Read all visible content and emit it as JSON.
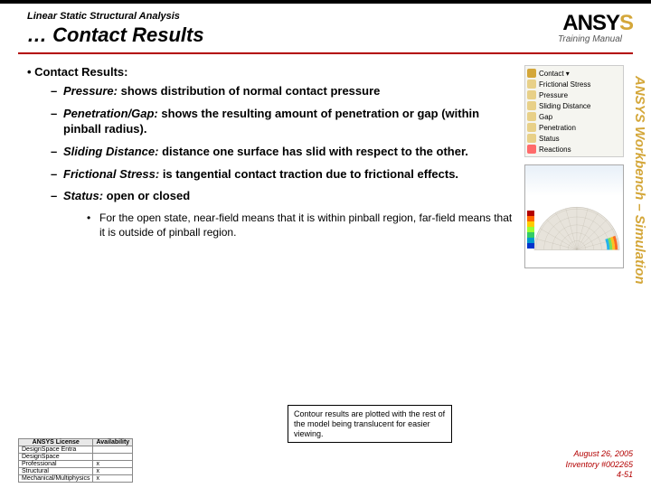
{
  "header": {
    "subtitle": "Linear Static Structural Analysis",
    "title": "… Contact Results",
    "logo_black": "ANSY",
    "logo_accent": "S",
    "manual": "Training Manual"
  },
  "content": {
    "heading": "•  Contact Results:",
    "items": [
      {
        "term": "Pressure:",
        "desc": " shows distribution of normal contact pressure"
      },
      {
        "term": "Penetration/Gap:",
        "desc": " shows the resulting amount of penetration or gap (within pinball radius)."
      },
      {
        "term": "Sliding Distance:",
        "desc": " distance one surface has slid with respect to the other."
      },
      {
        "term": "Frictional Stress:",
        "desc": " is tangential contact traction due to frictional effects."
      },
      {
        "term": "Status:",
        "desc": " open or closed"
      }
    ],
    "subnote": "For the open state, near-field means that it is within pinball region, far-field means that it is outside of pinball region."
  },
  "menu": {
    "items": [
      {
        "label": "Contact ▾",
        "color": "#d4a73a"
      },
      {
        "label": "Frictional Stress",
        "color": "#e8d088"
      },
      {
        "label": "Pressure",
        "color": "#e8d088"
      },
      {
        "label": "Sliding Distance",
        "color": "#e8d088"
      },
      {
        "label": "Gap",
        "color": "#e8d088"
      },
      {
        "label": "Penetration",
        "color": "#e8d088"
      },
      {
        "label": "Status",
        "color": "#e8d088"
      },
      {
        "label": "Reactions",
        "color": "#ff6b6b"
      }
    ]
  },
  "vertical_label": "ANSYS Workbench – Simulation",
  "note": "Contour results are plotted with the rest of the model being translucent for easier viewing.",
  "footer_table": {
    "headers": [
      "ANSYS License",
      "Availability"
    ],
    "rows": [
      [
        "DesignSpace Entra",
        ""
      ],
      [
        "DesignSpace",
        ""
      ],
      [
        "Professional",
        "x"
      ],
      [
        "Structural",
        "x"
      ],
      [
        "Mechanical/Multiphysics",
        "x"
      ]
    ]
  },
  "footer": {
    "date": "August 26, 2005",
    "inv": "Inventory #002265",
    "page": "4-51"
  },
  "contour": {
    "legend_colors": [
      "#b30000",
      "#ff6600",
      "#ffcc00",
      "#99ff33",
      "#33cc66",
      "#0099cc",
      "#0033cc"
    ],
    "dome_outer": "#cfc8b8",
    "dome_mesh": "#9a9484",
    "band_colors": [
      "#ff5500",
      "#ffbb00",
      "#66dd44",
      "#00aaee"
    ]
  }
}
